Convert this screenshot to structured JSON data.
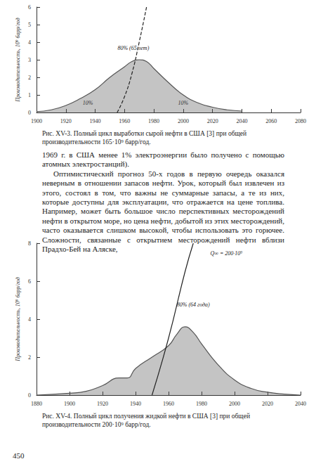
{
  "chart_data": [
    {
      "type": "line",
      "y_label": "Производительность, 10⁹ барр/год",
      "caption": "Рис. XV-3. Полный цикл выработки сырой нефти в США [3] при общей производительности 165·10⁹ барр/год.",
      "xlim": [
        1900,
        2080
      ],
      "xticks": [
        1900,
        1920,
        1940,
        1960,
        1980,
        2000,
        2020,
        2040,
        2060,
        2080
      ],
      "ylim": [
        0,
        6
      ],
      "yticks": [
        0,
        1,
        2,
        3,
        4,
        5,
        6
      ],
      "grid": false,
      "series": [
        {
          "type": "area",
          "color": "#555555",
          "x": [
            1900,
            1910,
            1920,
            1930,
            1940,
            1950,
            1960,
            1965,
            1970,
            1975,
            1980,
            1990,
            2000,
            2010,
            2020,
            2030,
            2040
          ],
          "values": [
            0.05,
            0.15,
            0.4,
            0.8,
            1.3,
            2.0,
            2.6,
            2.9,
            3.0,
            2.9,
            2.5,
            1.7,
            1.0,
            0.55,
            0.3,
            0.15,
            0.08
          ]
        },
        {
          "type": "line",
          "color": "#222222",
          "line_style": "dashed",
          "x": [
            1955,
            1960,
            1965,
            1970,
            1975
          ],
          "values": [
            0,
            0.9,
            2.2,
            4.0,
            6.0
          ]
        }
      ],
      "annotations": [
        {
          "text": "80% (65 лет)",
          "x": 1966,
          "y": 3.5
        },
        {
          "text": "10%",
          "x": 1935,
          "y": 0.4
        },
        {
          "text": "10%",
          "x": 2000,
          "y": 0.4
        }
      ]
    },
    {
      "type": "line",
      "y_label": "Производительность, 10⁹ барр/год",
      "caption": "Рис. XV-4. Полный цикл получения жидкой нефти в США [3] при общей производительности 200·10⁹ барр/год.",
      "xlim": [
        1880,
        2040
      ],
      "xticks": [
        1880,
        1900,
        1920,
        1940,
        1960,
        1980,
        2000,
        2020,
        2040
      ],
      "ylim": [
        0,
        8
      ],
      "yticks": [
        0,
        2,
        4,
        6,
        8
      ],
      "grid": false,
      "series": [
        {
          "type": "area",
          "color": "#555555",
          "x": [
            1880,
            1900,
            1910,
            1920,
            1930,
            1935,
            1940,
            1950,
            1960,
            1965,
            1970,
            1975,
            1980,
            1990,
            2000,
            2010,
            2020,
            2030,
            2040
          ],
          "values": [
            0,
            0.1,
            0.2,
            0.5,
            0.9,
            0.9,
            1.4,
            2.0,
            2.6,
            3.2,
            3.6,
            3.3,
            2.7,
            1.6,
            0.8,
            0.35,
            0.15,
            0.05,
            0
          ]
        },
        {
          "type": "line",
          "color": "#222222",
          "line_style": "solid",
          "x": [
            1950,
            1960,
            1970,
            1975
          ],
          "values": [
            0,
            3,
            6.5,
            8
          ]
        }
      ],
      "annotations": [
        {
          "text": "80% (64 года)",
          "x": 1975,
          "y": 4.6
        },
        {
          "text": "Q∞ = 200·10⁹",
          "x": 1995,
          "y": 7.3
        }
      ]
    }
  ],
  "text": {
    "paragraphs": [
      "1969 г. в США менее 1% электроэнергии было получено с помощью атомных электростанций).",
      "Оптимистический прогноз 50-х годов в первую очередь оказался неверным в отношении запасов нефти. Урок, который был извлечен из этого, состоял в том, что важны не суммарные запасы, а те из них, которые доступны для эксплуатации, что отражается на цене топлива. Например, может быть большое число перспективных месторождений нефти в открытом море, но цена нефти, добытой из этих месторождений, часто оказывается слишком высокой, чтобы использовать это горючее. Сложности, связанные с открытием месторождений нефти вблизи Прадхо-Бей на Аляске,"
    ],
    "page": 450
  }
}
